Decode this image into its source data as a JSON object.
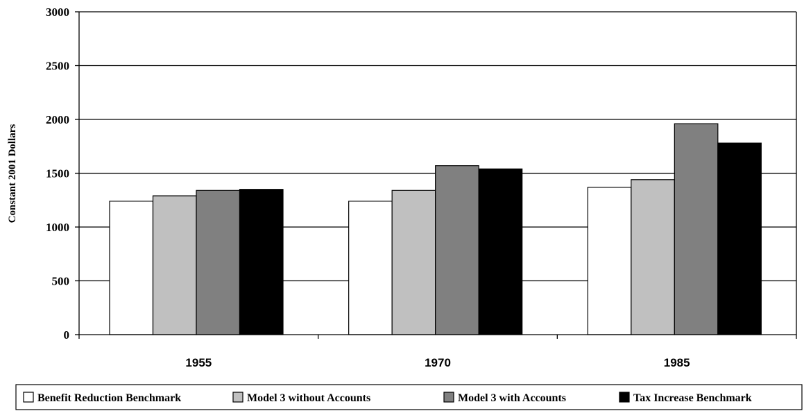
{
  "chart_data": {
    "type": "bar",
    "title": "",
    "xlabel": "",
    "ylabel": "Constant 2001 Dollars",
    "ylim": [
      0,
      3000
    ],
    "yticks": [
      0,
      500,
      1000,
      1500,
      2000,
      2500,
      3000
    ],
    "grid": true,
    "legend_position": "bottom",
    "categories": [
      "1955",
      "1970",
      "1985"
    ],
    "series": [
      {
        "name": "Benefit Reduction Benchmark",
        "color": "#ffffff",
        "values": [
          1240,
          1240,
          1370
        ]
      },
      {
        "name": "Model 3 without Accounts",
        "color": "#c0c0c0",
        "values": [
          1290,
          1340,
          1440
        ]
      },
      {
        "name": "Model 3 with Accounts",
        "color": "#808080",
        "values": [
          1340,
          1570,
          1960
        ]
      },
      {
        "name": "Tax Increase Benchmark",
        "color": "#000000",
        "values": [
          1350,
          1540,
          1780
        ]
      }
    ]
  }
}
